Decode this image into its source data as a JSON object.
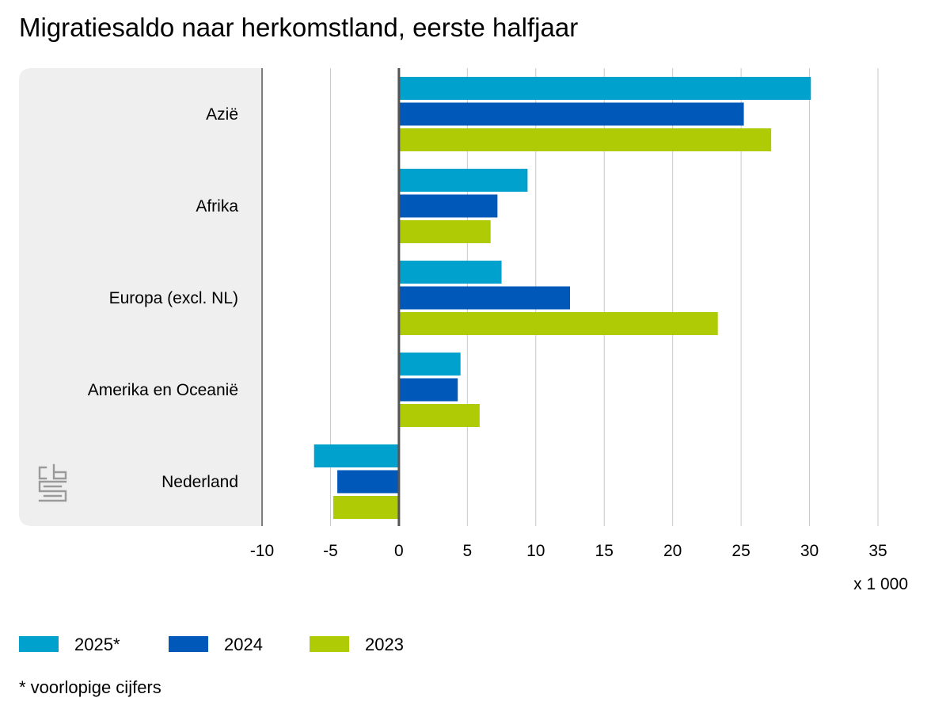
{
  "chart_data": {
    "type": "bar",
    "orientation": "horizontal",
    "title": "Migratiesaldo naar herkomstland, eerste halfjaar",
    "categories": [
      "Azië",
      "Afrika",
      "Europa (excl. NL)",
      "Amerika en Oceanië",
      "Nederland"
    ],
    "series": [
      {
        "name": "2025*",
        "color": "#00a1cd",
        "values": [
          30.1,
          9.4,
          7.5,
          4.5,
          -6.2
        ]
      },
      {
        "name": "2024",
        "color": "#0058b8",
        "values": [
          25.2,
          7.2,
          12.5,
          4.3,
          -4.5
        ]
      },
      {
        "name": "2023",
        "color": "#afcb05",
        "values": [
          27.2,
          6.7,
          23.3,
          5.9,
          -4.8
        ]
      }
    ],
    "xlim": [
      -10,
      35
    ],
    "xticks": [
      -10,
      -5,
      0,
      5,
      10,
      15,
      20,
      25,
      30,
      35
    ],
    "xunit": "x 1 000",
    "grid": true,
    "legend_position": "bottom-left",
    "footnote": "* voorlopige cijfers",
    "logo": "cbs"
  },
  "colors": {
    "label_panel": "#efefef",
    "gridline": "#c8c8c8",
    "zero_line": "#555555",
    "logo": "#9a9a9a"
  }
}
